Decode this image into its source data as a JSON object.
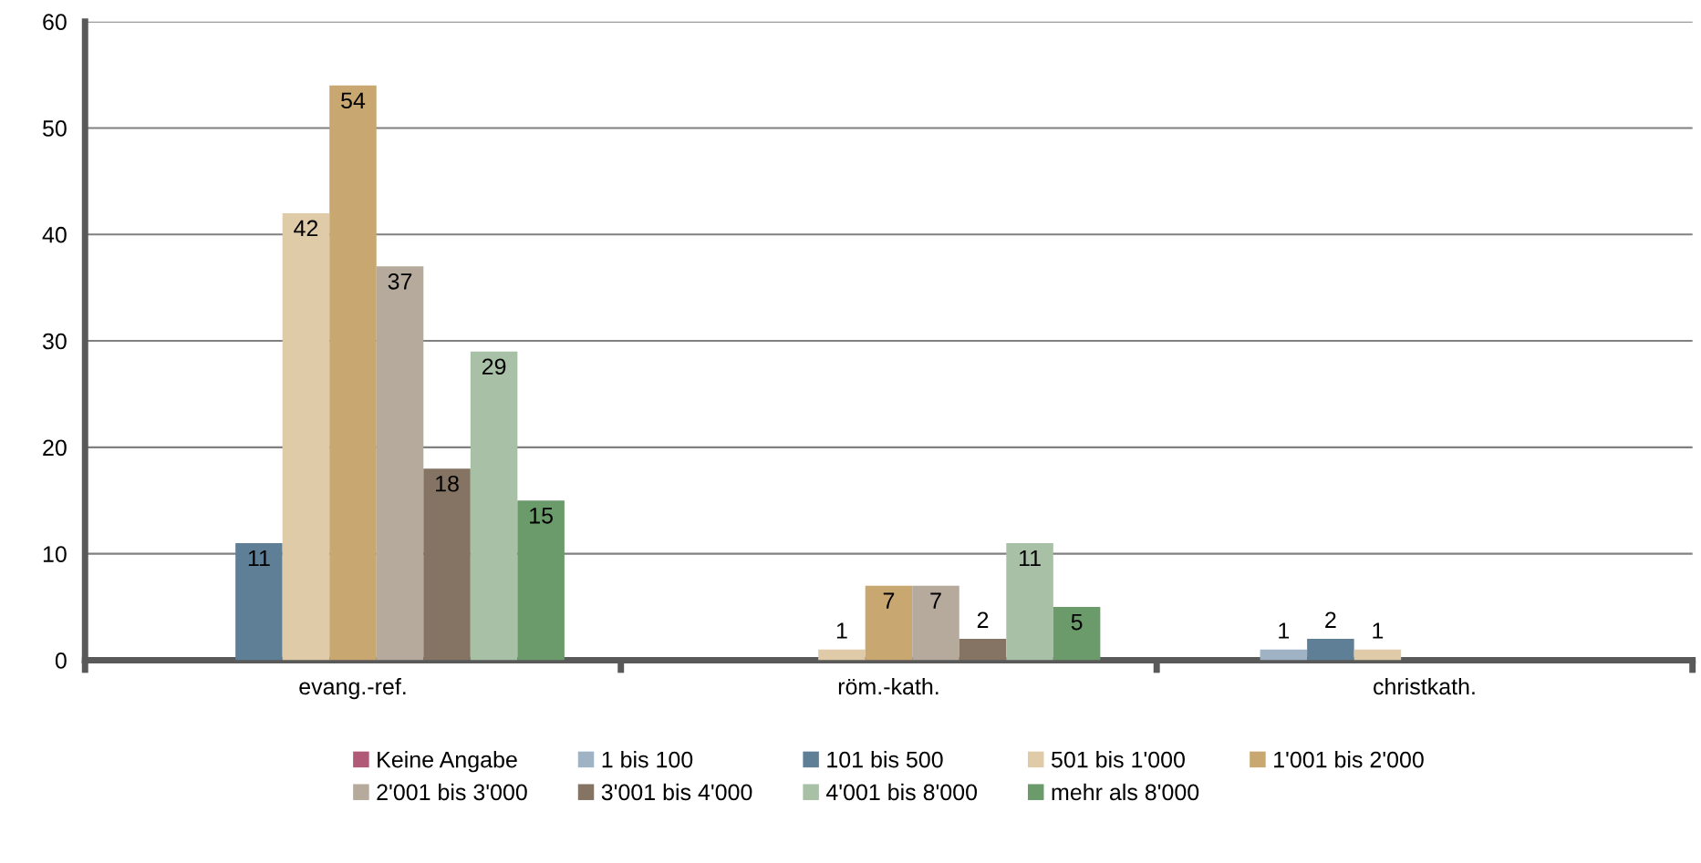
{
  "chart_data": {
    "type": "bar",
    "categories": [
      "evang.-ref.",
      "röm.-kath.",
      "christkath."
    ],
    "series": [
      {
        "name": "Keine Angabe",
        "color": "#b05a78",
        "values": [
          null,
          null,
          null
        ],
        "value_labels": [
          null,
          null,
          null
        ]
      },
      {
        "name": "1 bis 100",
        "color": "#9fb3c4",
        "values": [
          null,
          null,
          1
        ],
        "value_labels": [
          null,
          null,
          "1"
        ]
      },
      {
        "name": "101 bis 500",
        "color": "#5f7f96",
        "values": [
          11,
          null,
          2
        ],
        "value_labels": [
          "11",
          null,
          "2"
        ]
      },
      {
        "name": "501 bis 1'000",
        "color": "#dfcba8",
        "values": [
          42,
          1,
          1
        ],
        "value_labels": [
          "42",
          "1",
          "1"
        ]
      },
      {
        "name": "1'001 bis 2'000",
        "color": "#c8a870",
        "values": [
          54,
          7,
          null
        ],
        "value_labels": [
          "54",
          "7",
          null
        ]
      },
      {
        "name": "2'001 bis 3'000",
        "color": "#b5aa9c",
        "values": [
          37,
          7,
          null
        ],
        "value_labels": [
          "37",
          "7",
          null
        ]
      },
      {
        "name": "3'001 bis 4'000",
        "color": "#857463",
        "values": [
          18,
          2,
          null
        ],
        "value_labels": [
          "18",
          "2",
          null
        ]
      },
      {
        "name": "4'001 bis 8'000",
        "color": "#a8c0a6",
        "values": [
          29,
          11,
          null
        ],
        "value_labels": [
          "29",
          "11",
          null
        ]
      },
      {
        "name": "mehr als 8'000",
        "color": "#6b9a6b",
        "values": [
          15,
          5,
          null
        ],
        "value_labels": [
          "15",
          "5",
          null
        ]
      }
    ],
    "ylim": [
      0,
      60
    ],
    "yticks": [
      0,
      10,
      20,
      30,
      40,
      50,
      60
    ],
    "grid": "y",
    "legend": "bottom"
  }
}
